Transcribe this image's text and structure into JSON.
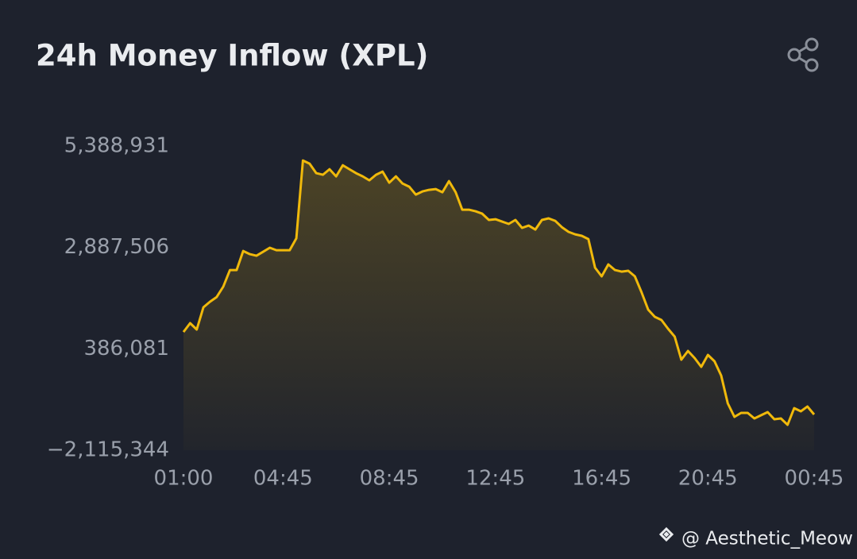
{
  "chart_data": {
    "type": "line",
    "title": "24h Money Inflow (XPL)",
    "categories": [
      "01:00",
      null,
      null,
      null,
      null,
      null,
      null,
      null,
      null,
      null,
      null,
      null,
      null,
      null,
      null,
      "04:45",
      null,
      null,
      null,
      null,
      null,
      null,
      null,
      null,
      null,
      null,
      null,
      null,
      null,
      null,
      null,
      "08:45",
      null,
      null,
      null,
      null,
      null,
      null,
      null,
      null,
      null,
      null,
      null,
      null,
      null,
      null,
      null,
      "12:45",
      null,
      null,
      null,
      null,
      null,
      null,
      null,
      null,
      null,
      null,
      null,
      null,
      null,
      null,
      null,
      "16:45",
      null,
      null,
      null,
      null,
      null,
      null,
      null,
      null,
      null,
      null,
      null,
      null,
      null,
      null,
      null,
      "20:45",
      null,
      null,
      null,
      null,
      null,
      null,
      null,
      null,
      null,
      null,
      null,
      null,
      null,
      null,
      null,
      "00:45"
    ],
    "series": [
      {
        "name": "Money Inflow",
        "color": "#f0b90b",
        "values": [
          803000,
          1019000,
          862000,
          1411000,
          1548000,
          1665000,
          1920000,
          2331000,
          2331000,
          2801000,
          2723000,
          2684000,
          2782000,
          2880000,
          2821000,
          2821000,
          2821000,
          3115000,
          5035000,
          4956000,
          4721000,
          4682000,
          4819000,
          4643000,
          4917000,
          4819000,
          4721000,
          4643000,
          4545000,
          4682000,
          4760000,
          4486000,
          4643000,
          4467000,
          4388000,
          4192000,
          4271000,
          4310000,
          4329000,
          4251000,
          4525000,
          4251000,
          3820000,
          3820000,
          3781000,
          3722000,
          3566000,
          3585000,
          3526000,
          3468000,
          3566000,
          3370000,
          3428000,
          3330000,
          3566000,
          3605000,
          3546000,
          3389000,
          3272000,
          3213000,
          3174000,
          3095000,
          2390000,
          2175000,
          2469000,
          2331000,
          2292000,
          2312000,
          2175000,
          1783000,
          1352000,
          1176000,
          1097000,
          882000,
          686000,
          118000,
          334000,
          157000,
          -58000,
          236000,
          79000,
          -274000,
          -959000,
          -1292000,
          -1194000,
          -1194000,
          -1331000,
          -1253000,
          -1175000,
          -1351000,
          -1331000,
          -1488000,
          -1077000,
          -1155000,
          -1038000,
          -1233000
        ]
      }
    ],
    "ylim": [
      -2115344,
      5388931
    ],
    "yticks": [
      {
        "value": 5388931,
        "label": "5,388,931"
      },
      {
        "value": 2887506,
        "label": "2,887,506"
      },
      {
        "value": 386081,
        "label": "386,081"
      },
      {
        "value": -2115344,
        "label": "−2,115,344"
      }
    ],
    "grid": false,
    "watermark": "@ Aesthetic_Meow"
  }
}
